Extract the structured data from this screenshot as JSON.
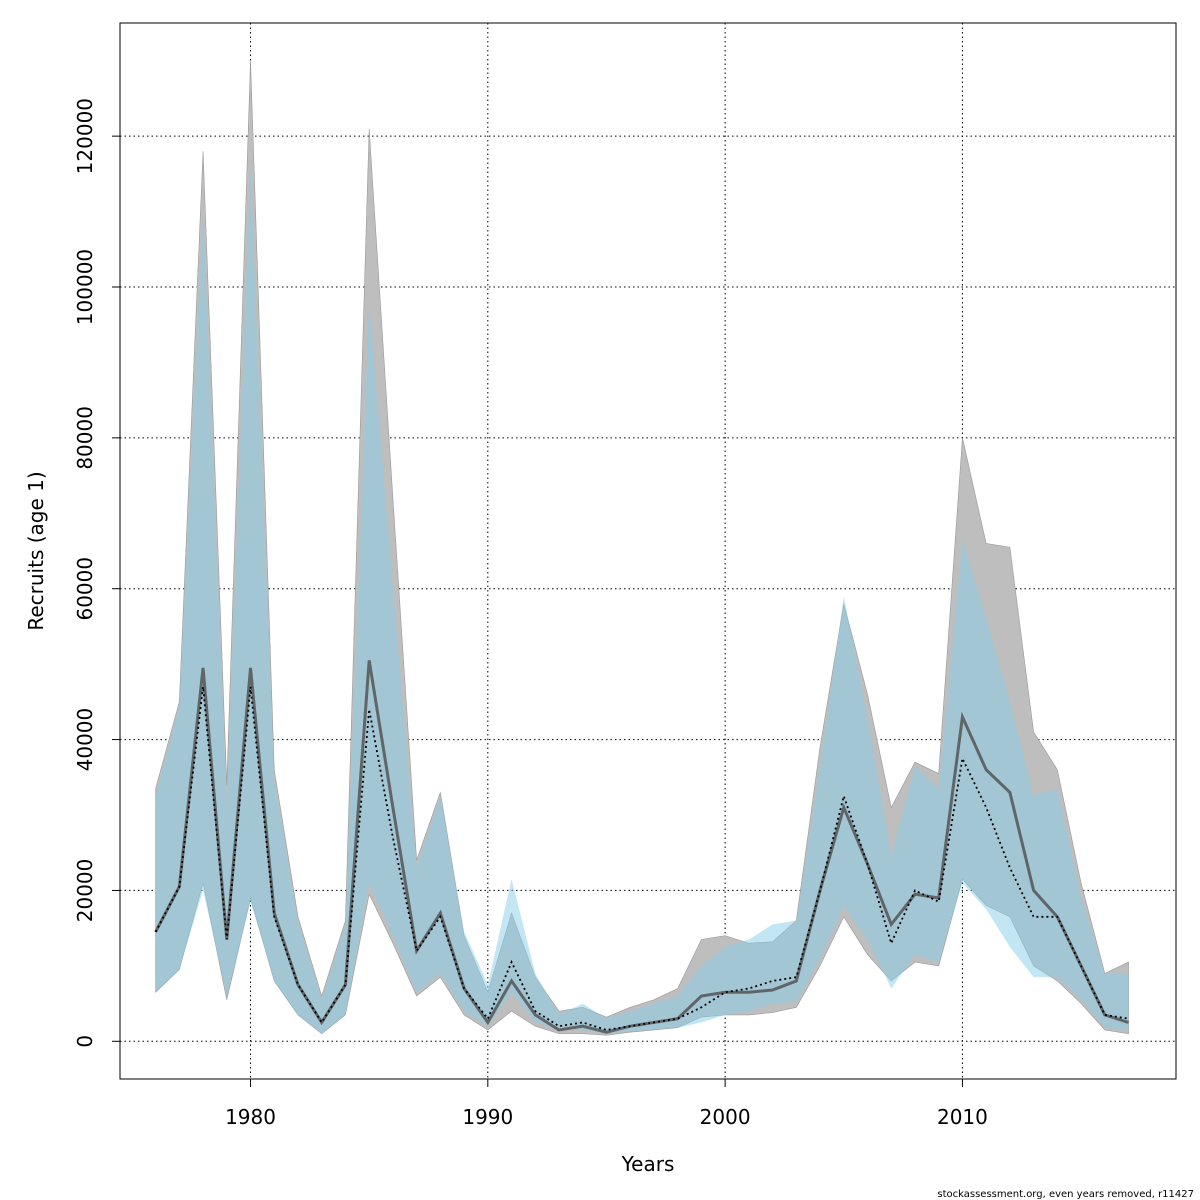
{
  "chart_data": {
    "type": "area",
    "xlabel": "Years",
    "ylabel": "Recruits (age 1)",
    "footnote": "stockassessment.org, even  years  removed, r11427",
    "xlim": [
      1974.5,
      2019
    ],
    "ylim": [
      -5000,
      135000
    ],
    "xticks": [
      1980,
      1990,
      2000,
      2010
    ],
    "yticks": [
      0,
      20000,
      40000,
      60000,
      80000,
      100000,
      120000
    ],
    "grid": true,
    "colors": {
      "band_gray": "#bebebe",
      "band_blue": "#87ceeb",
      "line_gray": "#555555",
      "line_dotted": "#000000",
      "grid": "#000000"
    },
    "x": [
      1976,
      1977,
      1978,
      1979,
      1980,
      1981,
      1982,
      1983,
      1984,
      1985,
      1986,
      1987,
      1988,
      1989,
      1990,
      1991,
      1992,
      1993,
      1994,
      1995,
      1996,
      1997,
      1998,
      1999,
      2000,
      2001,
      2002,
      2003,
      2004,
      2005,
      2006,
      2007,
      2008,
      2009,
      2010,
      2011,
      2012,
      2013,
      2014,
      2015,
      2016,
      2017
    ],
    "series": [
      {
        "key": "gray",
        "estimate": [
          14500,
          20500,
          49500,
          13500,
          49500,
          17000,
          7500,
          2500,
          7500,
          50500,
          31000,
          12000,
          17000,
          7000,
          2500,
          8000,
          3500,
          1500,
          2000,
          1200,
          2000,
          2500,
          3000,
          6000,
          6500,
          6500,
          6800,
          8000,
          20000,
          31000,
          23500,
          15500,
          19500,
          19000,
          43000,
          36000,
          33000,
          20000,
          16500,
          10000,
          3500,
          2500
        ],
        "lower": [
          6500,
          9500,
          21000,
          5500,
          19000,
          8000,
          3500,
          1000,
          3500,
          19500,
          13000,
          6000,
          8500,
          3500,
          1500,
          4000,
          2000,
          1000,
          1000,
          800,
          1200,
          1500,
          1800,
          3200,
          3500,
          3500,
          3800,
          4500,
          10000,
          16500,
          11500,
          8000,
          10500,
          10000,
          21500,
          18000,
          16500,
          10000,
          8000,
          5000,
          1500,
          1000
        ],
        "upper": [
          33500,
          45000,
          118000,
          34000,
          130000,
          36000,
          16500,
          6000,
          16000,
          121000,
          72000,
          24000,
          33000,
          14000,
          6500,
          17000,
          8500,
          4000,
          4500,
          3200,
          4500,
          5500,
          7000,
          13500,
          14000,
          13000,
          13200,
          16000,
          39000,
          58000,
          46000,
          31000,
          37000,
          35500,
          80000,
          66000,
          65500,
          41000,
          36000,
          21000,
          9000,
          10500
        ]
      },
      {
        "key": "blue",
        "estimate": [
          14500,
          20500,
          47000,
          13500,
          47000,
          16500,
          7500,
          2500,
          7500,
          44000,
          27000,
          12000,
          16500,
          7000,
          3000,
          10500,
          4000,
          2000,
          2500,
          1500,
          2000,
          2500,
          3000,
          4500,
          6500,
          7000,
          8000,
          8500,
          20000,
          32500,
          23500,
          13000,
          20000,
          18500,
          37500,
          31000,
          23000,
          16500,
          16500,
          10000,
          3500,
          3000
        ],
        "lower": [
          6500,
          9500,
          20000,
          6000,
          18500,
          8000,
          3500,
          1000,
          3500,
          21000,
          14000,
          6500,
          9000,
          4000,
          2000,
          6500,
          2500,
          1500,
          1500,
          1000,
          1300,
          1600,
          1800,
          2500,
          3500,
          4000,
          5000,
          5200,
          11000,
          18000,
          13500,
          7000,
          11500,
          10500,
          21000,
          17500,
          12500,
          8500,
          8500,
          5500,
          1800,
          1500
        ],
        "upper": [
          32500,
          44500,
          110000,
          31000,
          116000,
          34500,
          16000,
          5500,
          15500,
          98000,
          60000,
          23000,
          32500,
          14500,
          7500,
          21500,
          9000,
          3500,
          5000,
          3000,
          4000,
          5000,
          6000,
          10000,
          12500,
          13500,
          15500,
          16000,
          36500,
          59000,
          43000,
          24500,
          36500,
          33500,
          66500,
          56000,
          45000,
          32500,
          33500,
          19000,
          9000,
          9000
        ]
      }
    ]
  }
}
